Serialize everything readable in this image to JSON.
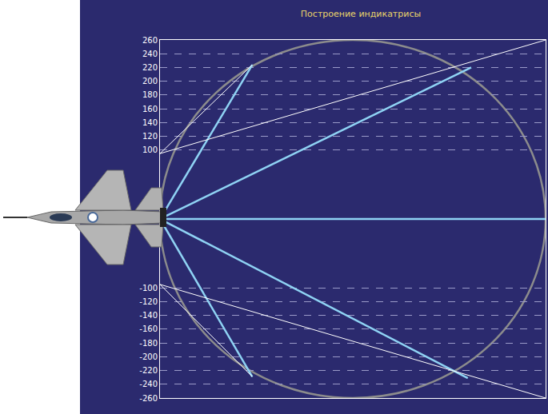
{
  "chart_data": {
    "type": "line",
    "title": "Построение индикатрисы",
    "xlim": [
      0,
      560
    ],
    "ylim": [
      -260,
      260
    ],
    "yticks": [
      -260,
      -240,
      -220,
      -200,
      -180,
      -160,
      -140,
      -120,
      -100,
      100,
      120,
      140,
      160,
      180,
      200,
      220,
      240,
      260
    ],
    "tick_labels": "y",
    "grid": true,
    "circle": {
      "x": [
        0,
        560
      ],
      "y": [
        -260,
        260
      ],
      "color": "#8c8c8c"
    },
    "series": [
      {
        "color": "#8fd3f4",
        "x": [
          0,
          134
        ],
        "values": [
          0,
          224
        ]
      },
      {
        "color": "#8fd3f4",
        "x": [
          0,
          452
        ],
        "values": [
          0,
          220
        ]
      },
      {
        "color": "#8fd3f4",
        "x": [
          0,
          560
        ],
        "values": [
          0,
          0
        ]
      },
      {
        "color": "#8fd3f4",
        "x": [
          0,
          447
        ],
        "values": [
          0,
          -231
        ]
      },
      {
        "color": "#8fd3f4",
        "x": [
          0,
          134
        ],
        "values": [
          0,
          -229
        ]
      },
      {
        "color": "#ffffff",
        "x": [
          0,
          560
        ],
        "values": [
          95,
          260
        ]
      },
      {
        "color": "#ffffff",
        "x": [
          0,
          134
        ],
        "values": [
          95,
          224
        ]
      },
      {
        "color": "#ffffff",
        "x": [
          0,
          560
        ],
        "values": [
          -95,
          -260
        ]
      },
      {
        "color": "#ffffff",
        "x": [
          0,
          134
        ],
        "values": [
          -95,
          -229
        ]
      }
    ]
  }
}
